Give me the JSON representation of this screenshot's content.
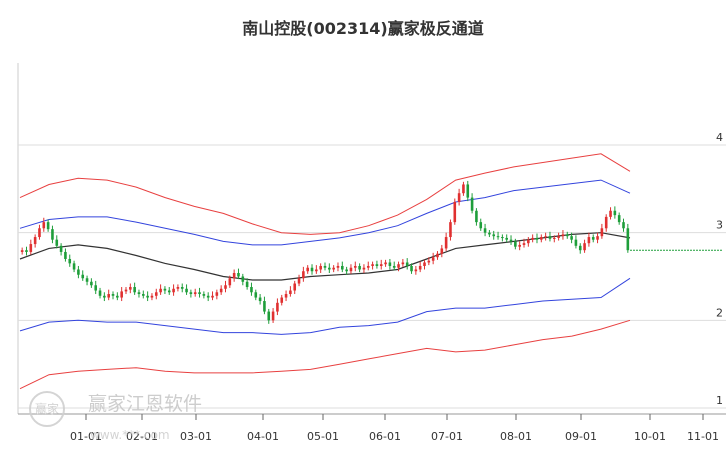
{
  "chart_data": {
    "type": "candlestick",
    "title": "南山控股(002314)赢家极反通道",
    "x_ticks": [
      "01-01",
      "02-01",
      "03-01",
      "04-01",
      "05-01",
      "06-01",
      "07-01",
      "08-01",
      "09-01",
      "10-01",
      "11-01"
    ],
    "y_ticks": [
      "4",
      "3",
      "2",
      "1"
    ],
    "ylim": [
      1,
      4
    ],
    "colors": {
      "up": "#e03030",
      "down": "#1e9e3a",
      "upper_outer": "#e84040",
      "upper_inner": "#3344dd",
      "middle": "#333333",
      "lower_inner": "#3344dd",
      "lower_outer": "#e84040",
      "last": "#1e9e3a"
    },
    "series": {
      "close": [
        2.8,
        2.78,
        2.87,
        2.95,
        3.05,
        3.12,
        3.04,
        2.92,
        2.85,
        2.78,
        2.7,
        2.65,
        2.58,
        2.52,
        2.48,
        2.44,
        2.4,
        2.34,
        2.28,
        2.26,
        2.3,
        2.28,
        2.26,
        2.33,
        2.35,
        2.38,
        2.32,
        2.3,
        2.28,
        2.26,
        2.28,
        2.32,
        2.36,
        2.34,
        2.32,
        2.36,
        2.38,
        2.36,
        2.32,
        2.3,
        2.32,
        2.3,
        2.28,
        2.26,
        2.28,
        2.32,
        2.36,
        2.4,
        2.48,
        2.54,
        2.5,
        2.44,
        2.38,
        2.32,
        2.26,
        2.22,
        2.1,
        2.0,
        2.1,
        2.2,
        2.26,
        2.3,
        2.34,
        2.42,
        2.48,
        2.56,
        2.6,
        2.56,
        2.58,
        2.62,
        2.6,
        2.58,
        2.6,
        2.62,
        2.58,
        2.56,
        2.6,
        2.62,
        2.58,
        2.6,
        2.62,
        2.64,
        2.62,
        2.64,
        2.66,
        2.62,
        2.6,
        2.64,
        2.66,
        2.62,
        2.56,
        2.58,
        2.62,
        2.66,
        2.68,
        2.72,
        2.76,
        2.82,
        2.95,
        3.12,
        3.35,
        3.45,
        3.55,
        3.4,
        3.25,
        3.12,
        3.05,
        3.0,
        2.98,
        2.96,
        2.95,
        2.94,
        2.92,
        2.9,
        2.84,
        2.86,
        2.88,
        2.92,
        2.94,
        2.92,
        2.95,
        2.96,
        2.93,
        2.94,
        2.96,
        2.98,
        2.96,
        2.92,
        2.85,
        2.8,
        2.88,
        2.95,
        2.92,
        2.96,
        3.05,
        3.18,
        3.25,
        3.2,
        3.12,
        3.05,
        2.8
      ],
      "bands": {
        "upper_outer": [
          3.4,
          3.55,
          3.62,
          3.6,
          3.52,
          3.4,
          3.3,
          3.22,
          3.1,
          3.0,
          2.98,
          3.0,
          3.08,
          3.2,
          3.38,
          3.6,
          3.68,
          3.75,
          3.8,
          3.85,
          3.9,
          3.7
        ],
        "upper_inner": [
          3.05,
          3.15,
          3.18,
          3.18,
          3.12,
          3.05,
          2.98,
          2.9,
          2.86,
          2.86,
          2.9,
          2.94,
          3.0,
          3.08,
          3.22,
          3.35,
          3.4,
          3.48,
          3.52,
          3.56,
          3.6,
          3.45
        ],
        "middle": [
          2.7,
          2.82,
          2.86,
          2.82,
          2.74,
          2.65,
          2.58,
          2.5,
          2.46,
          2.46,
          2.5,
          2.52,
          2.54,
          2.58,
          2.7,
          2.82,
          2.86,
          2.9,
          2.94,
          2.98,
          3.0,
          2.94
        ],
        "lower_inner": [
          1.88,
          1.98,
          2.0,
          1.98,
          1.98,
          1.94,
          1.9,
          1.86,
          1.86,
          1.84,
          1.86,
          1.92,
          1.94,
          1.98,
          2.1,
          2.14,
          2.14,
          2.18,
          2.22,
          2.24,
          2.26,
          2.48
        ],
        "lower_outer": [
          1.22,
          1.38,
          1.42,
          1.44,
          1.46,
          1.42,
          1.4,
          1.4,
          1.4,
          1.42,
          1.44,
          1.5,
          1.56,
          1.62,
          1.68,
          1.64,
          1.66,
          1.72,
          1.78,
          1.82,
          1.9,
          2.0
        ]
      },
      "last_close": 2.8
    }
  },
  "watermark": {
    "logo_text": "赢家",
    "brand_text": "赢家江恩软件",
    "url_text": "www.***.com"
  }
}
